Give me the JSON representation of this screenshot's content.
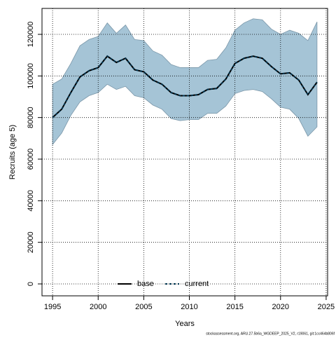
{
  "chart_data": {
    "type": "line",
    "xlabel": "Years",
    "ylabel": "Recruits (age 5)",
    "footer": "stockassessment.org, ARU.27.5b6a_WGDEEP_2025_V2, r19061, git:1cc464b806f",
    "x": [
      1995,
      1996,
      1997,
      1998,
      1999,
      2000,
      2001,
      2002,
      2003,
      2004,
      2005,
      2006,
      2007,
      2008,
      2009,
      2010,
      2011,
      2012,
      2013,
      2014,
      2015,
      2016,
      2017,
      2018,
      2019,
      2020,
      2021,
      2022,
      2023,
      2024
    ],
    "band": {
      "color": "#a5c4d6",
      "upper": [
        96000,
        98500,
        106000,
        114500,
        117500,
        119000,
        125500,
        120500,
        124500,
        117500,
        117000,
        112000,
        110000,
        105500,
        104000,
        104000,
        104000,
        107500,
        108000,
        113500,
        122000,
        125500,
        127500,
        127000,
        122500,
        120000,
        122000,
        120500,
        117000,
        126000
      ],
      "lower": [
        67000,
        72500,
        81000,
        87500,
        90500,
        92000,
        96000,
        93500,
        95000,
        90500,
        89500,
        86000,
        84000,
        79500,
        78500,
        79000,
        79000,
        82000,
        82000,
        85500,
        91500,
        93000,
        93500,
        92500,
        89000,
        85000,
        84000,
        79500,
        71000,
        75500
      ]
    },
    "series": [
      {
        "name": "base",
        "color": "#000000",
        "dash": false,
        "values": [
          80000,
          84000,
          92000,
          99500,
          102500,
          104000,
          109500,
          106500,
          108500,
          103000,
          102000,
          98000,
          96000,
          92000,
          90500,
          90500,
          91000,
          93500,
          94000,
          98500,
          106000,
          108500,
          109500,
          108500,
          104500,
          101000,
          101500,
          98000,
          91000,
          97000
        ]
      },
      {
        "name": "current",
        "color": "#00334d",
        "dash": true,
        "values": [
          80000,
          84000,
          92000,
          99500,
          102500,
          104000,
          109500,
          106500,
          108500,
          103000,
          102000,
          98000,
          96000,
          92000,
          90500,
          90500,
          91000,
          93500,
          94000,
          98500,
          106000,
          108500,
          109500,
          108500,
          104500,
          101000,
          101500,
          98000,
          91000,
          97000
        ]
      }
    ],
    "xlim": [
      1993.84,
      2025.16
    ],
    "xticks": [
      1995,
      2000,
      2005,
      2010,
      2015,
      2020,
      2025
    ],
    "ylim": [
      -5730,
      132470
    ],
    "yticks": [
      0,
      20000,
      40000,
      60000,
      80000,
      100000,
      120000
    ],
    "grid": true,
    "legend": "bottom"
  }
}
